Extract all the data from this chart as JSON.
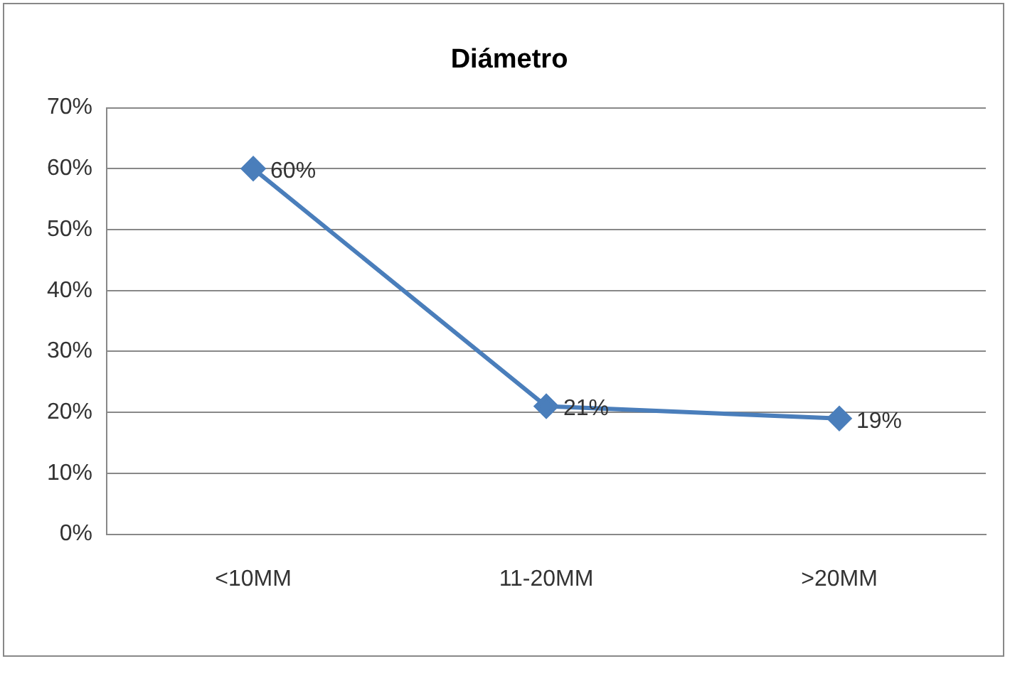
{
  "chart_data": {
    "type": "line",
    "title": "Diámetro",
    "categories": [
      "<10MM",
      "11-20MM",
      ">20MM"
    ],
    "series": [
      {
        "color": "#4a7ebb",
        "values": [
          60,
          21,
          19
        ],
        "value_labels": [
          "60%",
          "21%",
          "19%"
        ]
      }
    ],
    "ylim": [
      0,
      70
    ],
    "yticks": [
      {
        "value": 0,
        "label": "0%"
      },
      {
        "value": 10,
        "label": "10%"
      },
      {
        "value": 20,
        "label": "20%"
      },
      {
        "value": 30,
        "label": "30%"
      },
      {
        "value": 40,
        "label": "40%"
      },
      {
        "value": 50,
        "label": "50%"
      },
      {
        "value": 60,
        "label": "60%"
      },
      {
        "value": 70,
        "label": "70%"
      }
    ],
    "grid": "y",
    "legend": false,
    "marker": "diamond",
    "line_style": "solid"
  }
}
